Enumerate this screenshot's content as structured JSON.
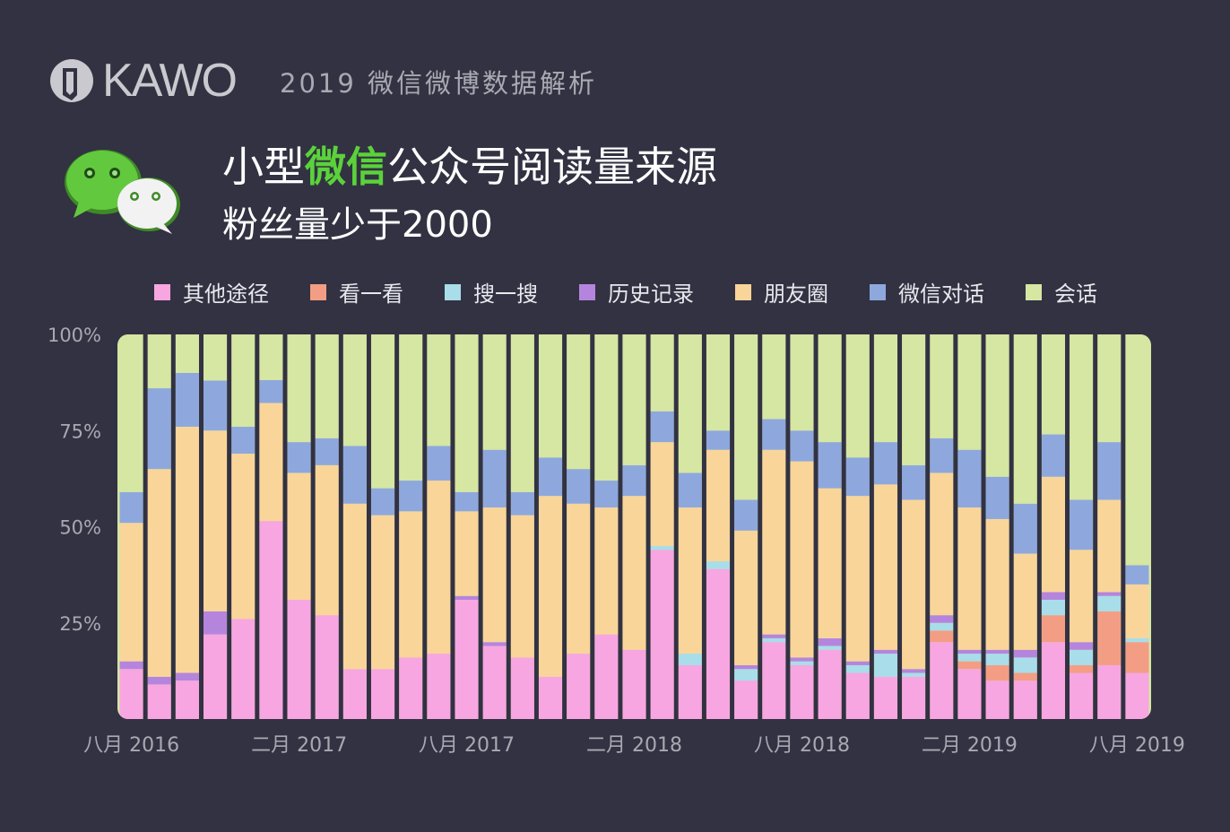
{
  "header": {
    "logo_text": "KAWO",
    "tagline": "2019 微信微博数据解析",
    "title_prefix": "小型",
    "title_highlight": "微信",
    "title_suffix": "公众号阅读量来源",
    "subtitle": "粉丝量少于2000"
  },
  "icons": {
    "brand_logo": "kawo-logo-icon",
    "wechat": "wechat-icon"
  },
  "colors": {
    "background": "#323242",
    "highlight": "#5bd23a",
    "plot_background": "#d6e6a3"
  },
  "chart_data": {
    "type": "bar",
    "stacked": true,
    "normalized": true,
    "y_ticks": [
      "100%",
      "75%",
      "50%",
      "25%"
    ],
    "y_tick_values": [
      100,
      75,
      50,
      25
    ],
    "ylim": [
      0,
      100
    ],
    "x_tick_labels": [
      {
        "index": 0,
        "label": "八月 2016"
      },
      {
        "index": 6,
        "label": "二月 2017"
      },
      {
        "index": 12,
        "label": "八月  2017"
      },
      {
        "index": 18,
        "label": "二月 2018"
      },
      {
        "index": 24,
        "label": "八月  2018"
      },
      {
        "index": 30,
        "label": "二月 2019"
      },
      {
        "index": 36,
        "label": "八月  2019"
      }
    ],
    "legend_position": "top",
    "series": [
      {
        "name": "其他途径",
        "color": "#f7a6e1",
        "values": [
          13,
          9,
          10,
          22,
          26,
          52,
          31,
          27,
          13,
          13,
          16,
          17,
          31,
          19,
          16,
          11,
          17,
          22,
          18,
          44,
          14,
          39,
          10,
          20,
          14,
          18,
          12,
          11,
          11,
          20,
          13,
          10,
          10,
          20,
          12,
          14,
          12
        ]
      },
      {
        "name": "看一看",
        "color": "#f39e84",
        "values": [
          0,
          0,
          0,
          0,
          0,
          0,
          0,
          0,
          0,
          0,
          0,
          0,
          0,
          0,
          0,
          0,
          0,
          0,
          0,
          0,
          0,
          0,
          0,
          0,
          0,
          0,
          0,
          0,
          0,
          3,
          2,
          4,
          2,
          7,
          2,
          14,
          8
        ]
      },
      {
        "name": "搜一搜",
        "color": "#a8dde9",
        "values": [
          0,
          0,
          0,
          0,
          0,
          0,
          0,
          0,
          0,
          0,
          0,
          0,
          0,
          0,
          0,
          0,
          0,
          0,
          0,
          1,
          3,
          2,
          3,
          1,
          1,
          1,
          2,
          6,
          1,
          2,
          2,
          3,
          4,
          4,
          4,
          4,
          1
        ]
      },
      {
        "name": "历史记录",
        "color": "#b585dd",
        "values": [
          2,
          2,
          2,
          6,
          0,
          0,
          0,
          0,
          0,
          0,
          0,
          0,
          1,
          1,
          0,
          0,
          0,
          0,
          0,
          0,
          0,
          0,
          1,
          1,
          1,
          2,
          1,
          1,
          1,
          2,
          1,
          1,
          2,
          2,
          2,
          1,
          0
        ]
      },
      {
        "name": "朋友圈",
        "color": "#f9d59a",
        "values": [
          36,
          54,
          64,
          47,
          43,
          31,
          33,
          39,
          43,
          40,
          38,
          45,
          22,
          35,
          37,
          47,
          39,
          33,
          40,
          27,
          38,
          29,
          35,
          48,
          51,
          39,
          43,
          43,
          44,
          37,
          37,
          34,
          25,
          30,
          24,
          24,
          14
        ]
      },
      {
        "name": "微信对话",
        "color": "#8ea8de",
        "values": [
          8,
          21,
          14,
          13,
          7,
          6,
          8,
          7,
          15,
          7,
          8,
          9,
          5,
          15,
          6,
          10,
          9,
          7,
          8,
          8,
          9,
          5,
          8,
          8,
          8,
          12,
          10,
          11,
          9,
          9,
          15,
          11,
          13,
          11,
          13,
          15,
          5
        ]
      },
      {
        "name": "会话",
        "color": "#d6e6a3",
        "values": [
          41,
          14,
          10,
          12,
          24,
          12,
          28,
          27,
          29,
          40,
          38,
          29,
          41,
          30,
          41,
          32,
          35,
          38,
          34,
          20,
          36,
          25,
          43,
          22,
          25,
          28,
          32,
          28,
          34,
          27,
          30,
          37,
          44,
          26,
          43,
          28,
          60
        ]
      }
    ]
  }
}
